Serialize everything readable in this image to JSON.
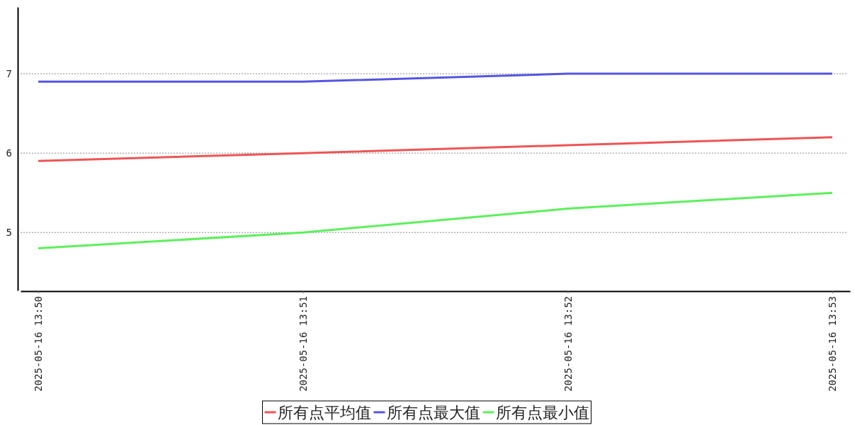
{
  "chart_data": {
    "type": "line",
    "categories": [
      "2025-05-16 13:50",
      "2025-05-16 13:51",
      "2025-05-16 13:52",
      "2025-05-16 13:53"
    ],
    "series": [
      {
        "name": "所有点平均值",
        "color": "#ee5555",
        "values": [
          5.9,
          6.0,
          6.1,
          6.2
        ]
      },
      {
        "name": "所有点最大值",
        "color": "#5555e0",
        "values": [
          6.9,
          6.9,
          7.0,
          7.0
        ]
      },
      {
        "name": "所有点最小值",
        "color": "#5cf05c",
        "values": [
          4.8,
          5.0,
          5.3,
          5.5
        ]
      }
    ],
    "ylim": [
      4.27,
      7.84
    ],
    "yticks": [
      5,
      6,
      7
    ],
    "grid": "y",
    "legend": "bottom"
  }
}
